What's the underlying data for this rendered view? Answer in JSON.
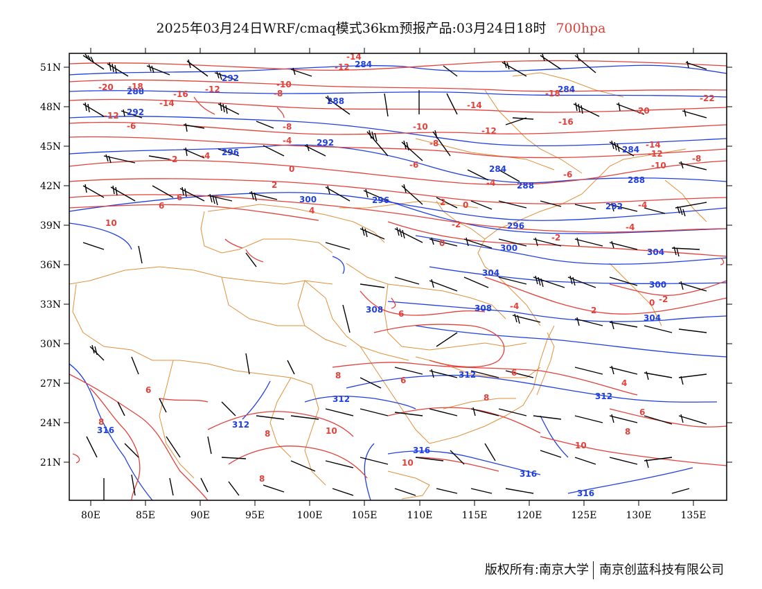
{
  "title": {
    "main": "2025年03月24日WRF/cmaq模式36km预报产品:03月24日18时",
    "level": "700hpa"
  },
  "axes": {
    "lon_labels": [
      "80E",
      "85E",
      "90E",
      "95E",
      "100E",
      "105E",
      "110E",
      "115E",
      "120E",
      "125E",
      "130E",
      "135E"
    ],
    "lat_labels": [
      "51N",
      "48N",
      "45N",
      "42N",
      "39N",
      "36N",
      "33N",
      "30N",
      "27N",
      "24N",
      "21N"
    ]
  },
  "height_contour_labels": [
    "284",
    "288",
    "292",
    "296",
    "300",
    "304",
    "308",
    "312",
    "316"
  ],
  "temperature_contour_labels": [
    "-22",
    "-20",
    "-18",
    "-16",
    "-14",
    "-12",
    "-10",
    "-8",
    "-6",
    "-4",
    "-2",
    "0",
    "2",
    "4",
    "6",
    "8",
    "10"
  ],
  "colors": {
    "height_contour": "#1f3fe0",
    "temperature_contour": "#e3403a",
    "wind_barb": "#000000",
    "border": "#e0903a",
    "frame": "#000000"
  },
  "copyright": {
    "left": "版权所有:南京大学",
    "right": "南京创蓝科技有限公司"
  }
}
